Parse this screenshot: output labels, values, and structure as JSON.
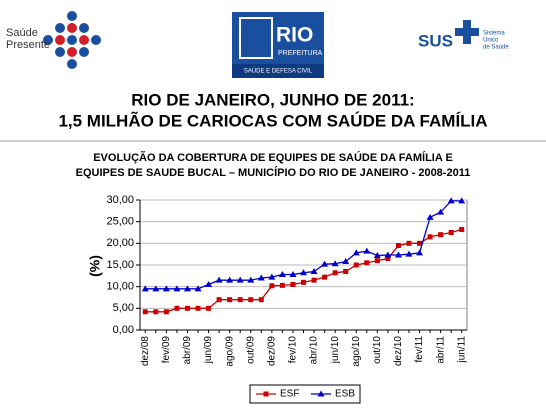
{
  "header": {
    "left_logo": [
      "Saúde",
      "Presente"
    ],
    "center_logo": {
      "name": "RIO",
      "sub": "PREFEITURA",
      "strip": "SAÚDE E DEFESA CIVIL"
    },
    "right_logo": {
      "name": "SUS",
      "sub": [
        "Sistema",
        "Único",
        "de Saúde"
      ]
    }
  },
  "slide_title": [
    "RIO DE JANEIRO, JUNHO DE 2011:",
    "1,5 MILHÃO DE CARIOCAS COM SAÚDE DA FAMÍLIA"
  ],
  "chart_data": {
    "type": "line",
    "title": [
      "EVOLUÇÃO DA COBERTURA DE EQUIPES DE SAÚDE DA FAMÍLIA E",
      "EQUIPES DE SAUDE BUCAL –   MUNICÍPIO DO RIO DE JANEIRO - 2008-2011"
    ],
    "y_label": "(%)",
    "categories": [
      "dez/08",
      null,
      "fev/09",
      null,
      "abr/09",
      null,
      "jun/09",
      null,
      "ago/09",
      null,
      "out/09",
      null,
      "dez/09",
      null,
      "fev/10",
      null,
      "abr/10",
      null,
      "jun/10",
      null,
      "ago/10",
      null,
      "out/10",
      null,
      "dez/10",
      null,
      "fev/11",
      null,
      "abr/11",
      null,
      "jun/11"
    ],
    "series": [
      {
        "name": "ESF",
        "color": "#cc0000",
        "marker": "square",
        "values": [
          4.2,
          4.2,
          4.2,
          5.0,
          5.0,
          5.0,
          5.0,
          7.0,
          7.0,
          7.0,
          7.0,
          7.0,
          10.2,
          10.3,
          10.5,
          11.0,
          11.5,
          12.2,
          13.2,
          13.5,
          15.0,
          15.5,
          16.0,
          16.5,
          19.5,
          20.0,
          20.0,
          21.5,
          22.0,
          22.5,
          23.2
        ]
      },
      {
        "name": "ESB",
        "color": "#0000cc",
        "marker": "triangle",
        "values": [
          9.5,
          9.5,
          9.5,
          9.5,
          9.5,
          9.5,
          10.5,
          11.5,
          11.5,
          11.5,
          11.5,
          12.0,
          12.2,
          12.8,
          12.8,
          13.2,
          13.5,
          15.2,
          15.3,
          15.8,
          17.8,
          18.2,
          17.2,
          17.3,
          17.3,
          17.5,
          17.8,
          26.0,
          27.2,
          29.8,
          29.8
        ]
      }
    ],
    "ylim": [
      0,
      30
    ],
    "yticks": [
      {
        "value": 0,
        "label": "0,00"
      },
      {
        "value": 5,
        "label": "5,00"
      },
      {
        "value": 10,
        "label": "10,00"
      },
      {
        "value": 15,
        "label": "15,00"
      },
      {
        "value": 20,
        "label": "20,00"
      },
      {
        "value": 25,
        "label": "25,00"
      },
      {
        "value": 30,
        "label": "30,00"
      }
    ],
    "grid": true,
    "legend": "bottom"
  }
}
